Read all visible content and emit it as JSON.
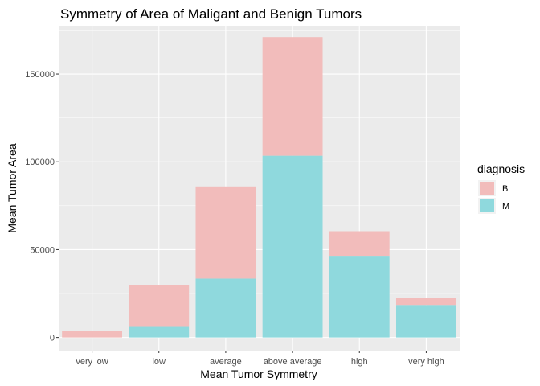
{
  "chart_data": {
    "type": "bar",
    "stacked": true,
    "title": "Symmetry of Area of Maligant and Benign Tumors",
    "xlabel": "Mean Tumor Symmetry",
    "ylabel": "Mean Tumor Area",
    "categories": [
      "very low",
      "low",
      "average",
      "above average",
      "high",
      "very high"
    ],
    "series": [
      {
        "name": "M",
        "color": "#8fd9dd",
        "values": [
          0,
          6000,
          33500,
          103500,
          46500,
          18500
        ]
      },
      {
        "name": "B",
        "color": "#f2bcbb",
        "values": [
          3500,
          24000,
          52500,
          67500,
          14000,
          4000
        ]
      }
    ],
    "ylim": [
      -7500,
      177500
    ],
    "yticks": [
      0,
      50000,
      100000,
      150000
    ],
    "ytick_labels": [
      "0",
      "50000",
      "100000",
      "150000"
    ],
    "grid": true,
    "legend": {
      "title": "diagnosis",
      "position": "right",
      "entries": [
        "B",
        "M"
      ]
    }
  }
}
